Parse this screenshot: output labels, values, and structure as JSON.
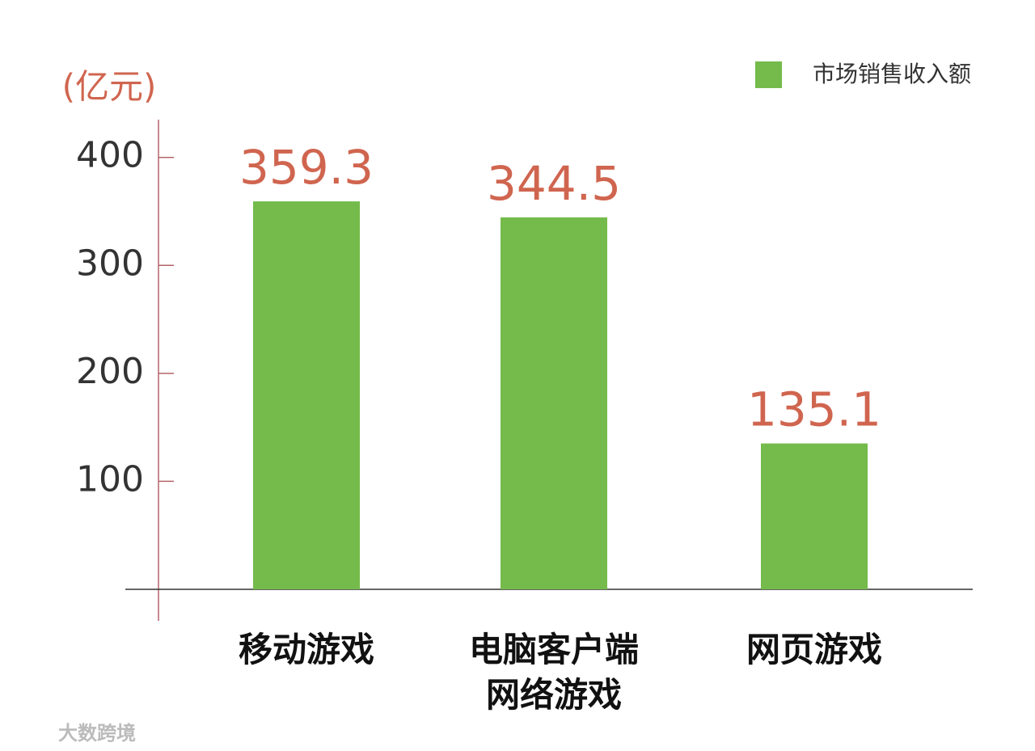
{
  "chart_data": {
    "type": "bar",
    "y_label": "(亿元)",
    "categories": [
      "移动游戏",
      "电脑客户端\n网络游戏",
      "网页游戏"
    ],
    "series": [
      {
        "name": "市场销售收入额",
        "color": "#74bb4b",
        "values": [
          359.3,
          344.5,
          135.1
        ]
      }
    ],
    "ylim": [
      0,
      435
    ],
    "yticks": [
      100,
      200,
      300,
      400
    ],
    "legend": "top-right",
    "watermark": "大数跨境"
  }
}
